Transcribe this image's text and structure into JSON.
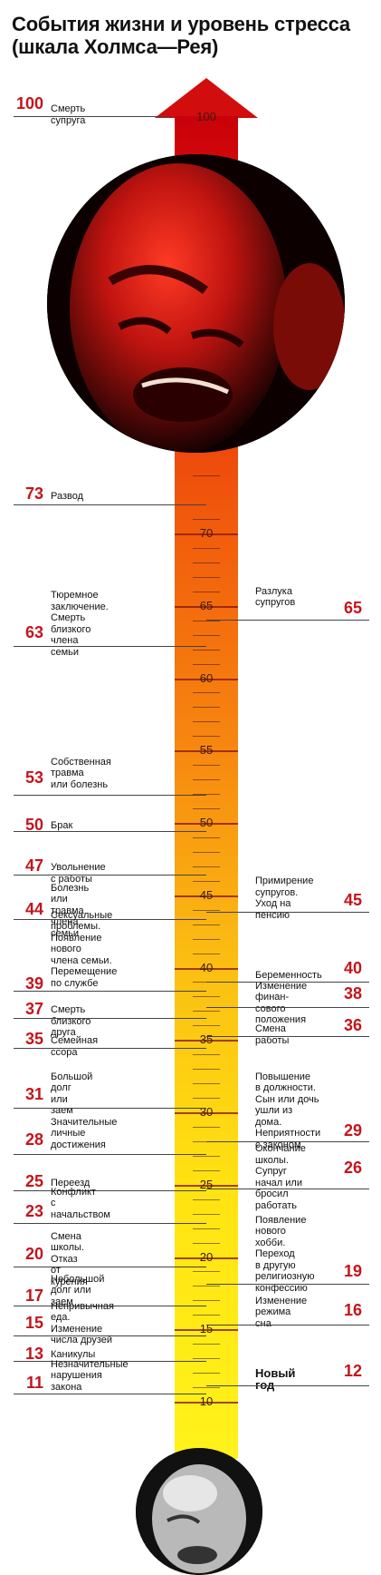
{
  "title": "События жизни и уровень стресса (шкала Холмса—Рея)",
  "scale_labels": [
    "100",
    "70",
    "65",
    "60",
    "55",
    "50",
    "45",
    "40",
    "35",
    "30",
    "25",
    "20",
    "15",
    "10"
  ],
  "left_events": [
    {
      "value": "100",
      "text": "Смерть супруга"
    },
    {
      "value": "73",
      "text": "Развод"
    },
    {
      "value": "63",
      "text": "Тюремное заключение.\nСмерть близкого\nчлена семьи"
    },
    {
      "value": "53",
      "text": "Собственная травма\nили болезнь"
    },
    {
      "value": "50",
      "text": "Брак"
    },
    {
      "value": "47",
      "text": "Увольнение с работы"
    },
    {
      "value": "44",
      "text": "Болезнь или травма\nчлена семьи"
    },
    {
      "value": "39",
      "text": "Сексуальные проблемы.\nПоявление нового\nчлена семьи.\nПеремещение по службе"
    },
    {
      "value": "37",
      "text": "Смерть близкого друга"
    },
    {
      "value": "35",
      "text": "Семейная ссора"
    },
    {
      "value": "31",
      "text": "Большой долг\nили заем"
    },
    {
      "value": "28",
      "text": "Значительные\nличные достижения"
    },
    {
      "value": "25",
      "text": "Переезд"
    },
    {
      "value": "23",
      "text": "Конфликт\nс начальством"
    },
    {
      "value": "20",
      "text": "Смена школы.\nОтказ от курения"
    },
    {
      "value": "17",
      "text": "Небольшой\nдолг или заем"
    },
    {
      "value": "15",
      "text": "Непривычная еда.\nИзменение числа друзей"
    },
    {
      "value": "13",
      "text": "Каникулы"
    },
    {
      "value": "11",
      "text": "Незначительные\nнарушения закона"
    }
  ],
  "right_events": [
    {
      "value": "65",
      "text": "Разлука\nсупругов"
    },
    {
      "value": "45",
      "text": "Примирение\nсупругов.\nУход на пенсию"
    },
    {
      "value": "40",
      "text": "Беременность"
    },
    {
      "value": "38",
      "text": "Изменение финан-\nсового положения"
    },
    {
      "value": "36",
      "text": "Смена работы"
    },
    {
      "value": "29",
      "text": "Повышение\nв должности.\nСын или дочь\nушли из дома.\nНеприятности\nс законом"
    },
    {
      "value": "26",
      "text": "Окончание школы.\nСупруг начал или\nбросил работать"
    },
    {
      "value": "19",
      "text": "Появление\nнового хобби.\nПереход\nв другую\nрелигиозную\nконфессию"
    },
    {
      "value": "16",
      "text": "Изменение\nрежима сна"
    },
    {
      "value": "12",
      "text": "Новый год"
    }
  ],
  "colors": {
    "accent": "#c4141b",
    "scale_top": "#c8000a",
    "scale_bottom": "#fff21a"
  },
  "images": [
    "stressed-face-photo",
    "calm-face-photo"
  ]
}
